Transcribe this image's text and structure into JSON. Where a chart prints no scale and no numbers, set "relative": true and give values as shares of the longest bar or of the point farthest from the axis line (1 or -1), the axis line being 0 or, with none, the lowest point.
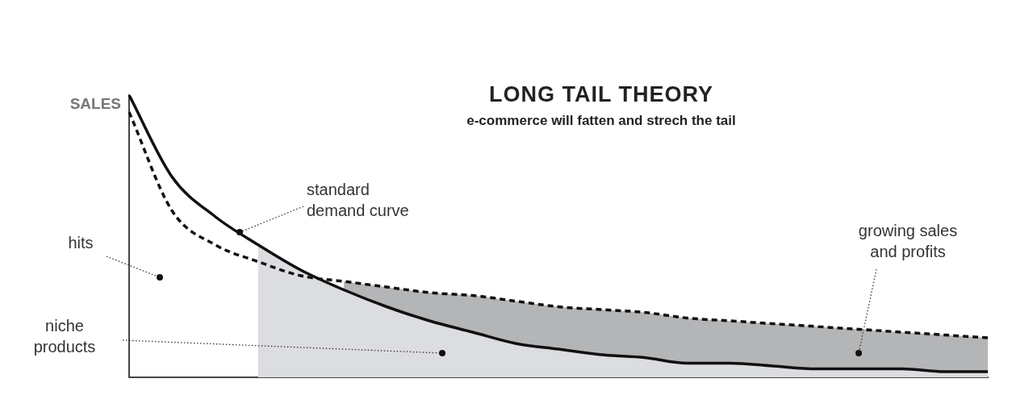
{
  "chart_data": {
    "type": "line",
    "title": "LONG TAIL THEORY",
    "subtitle": "e-commerce will fatten and strech the tail",
    "ylabel": "SALES",
    "relative": true,
    "categories": [
      null,
      null,
      null,
      null,
      null,
      null,
      null,
      null,
      null,
      null,
      null,
      null,
      null,
      null,
      null,
      null,
      null,
      null,
      null,
      null,
      null
    ],
    "series": [
      {
        "type": "area",
        "color": "#b4b5b7",
        "values": [
          null,
          null,
          null,
          null,
          null,
          0.34,
          0.32,
          0.3,
          0.29,
          0.27,
          0.25,
          0.24,
          0.23,
          0.21,
          0.2,
          0.19,
          0.18,
          0.17,
          0.16,
          0.15,
          0.14
        ]
      },
      {
        "type": "area",
        "color": "#dcdde0",
        "values": [
          null,
          null,
          null,
          0.47,
          0.38,
          0.31,
          0.25,
          0.2,
          0.16,
          0.12,
          0.1,
          0.08,
          0.07,
          0.05,
          0.05,
          0.04,
          0.03,
          0.03,
          0.03,
          0.02,
          0.02
        ]
      },
      {
        "color": "#111111",
        "line_style": "solid",
        "values": [
          1.0,
          0.71,
          0.57,
          0.47,
          0.38,
          0.31,
          0.25,
          0.2,
          0.16,
          0.12,
          0.1,
          0.08,
          0.07,
          0.05,
          0.05,
          0.04,
          0.03,
          0.03,
          0.03,
          0.02,
          0.02
        ]
      },
      {
        "color": "#111111",
        "line_style": "dashed",
        "values": [
          0.94,
          0.59,
          0.47,
          0.41,
          0.36,
          0.34,
          0.32,
          0.3,
          0.29,
          0.27,
          0.25,
          0.24,
          0.23,
          0.21,
          0.2,
          0.19,
          0.18,
          0.17,
          0.16,
          0.15,
          0.14
        ]
      }
    ],
    "annotations": [
      "standard demand curve",
      "hits",
      "niche products",
      "growing sales and profits"
    ],
    "grid": false,
    "legend": false,
    "marker": "none"
  }
}
